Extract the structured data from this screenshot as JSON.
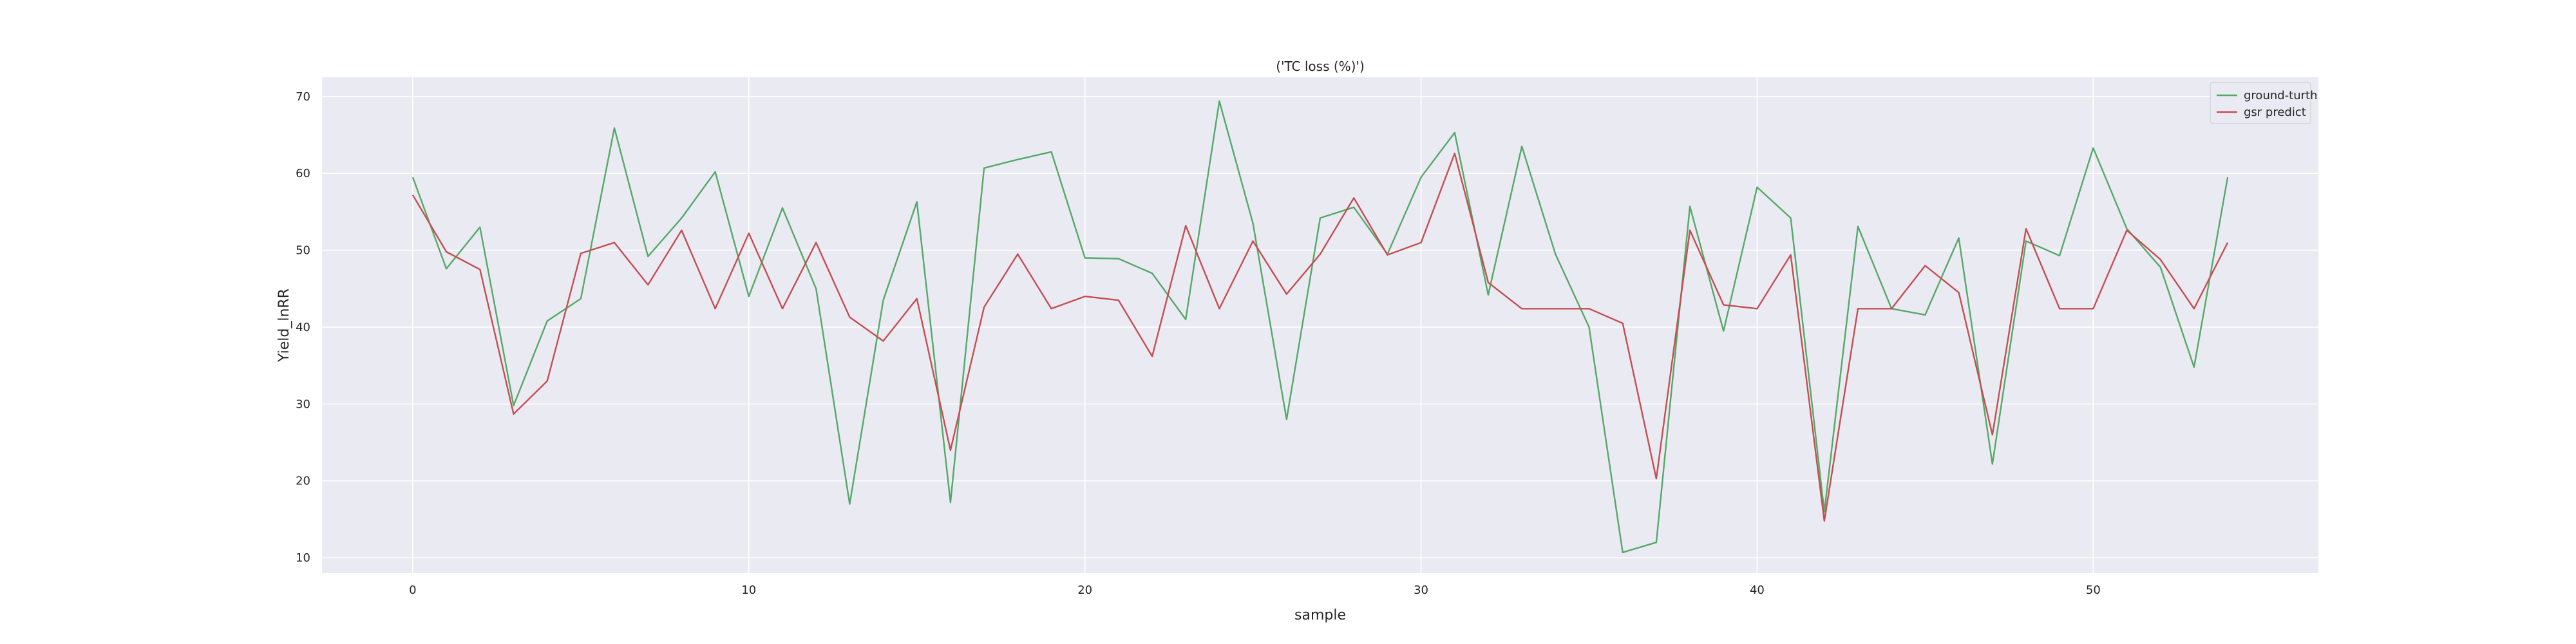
{
  "chart_data": {
    "type": "line",
    "title": "('TC loss (%)')",
    "xlabel": "sample",
    "ylabel": "Yield_lnRR",
    "xlim": [
      -2.7,
      56.7
    ],
    "ylim": [
      8,
      72.5
    ],
    "xticks": [
      0,
      10,
      20,
      30,
      40,
      50
    ],
    "yticks": [
      10,
      20,
      30,
      40,
      50,
      60,
      70
    ],
    "grid": true,
    "legend_position": "top-right",
    "colors": {
      "background": "#eaeaf2",
      "grid": "#ffffff"
    },
    "x": [
      0,
      1,
      2,
      3,
      4,
      5,
      6,
      7,
      8,
      9,
      10,
      11,
      12,
      13,
      14,
      15,
      16,
      17,
      18,
      19,
      20,
      21,
      22,
      23,
      24,
      25,
      26,
      27,
      28,
      29,
      30,
      31,
      32,
      33,
      34,
      35,
      36,
      37,
      38,
      39,
      40,
      41,
      42,
      43,
      44,
      45,
      46,
      47,
      48,
      49,
      50,
      51,
      52,
      53,
      54
    ],
    "series": [
      {
        "name": "ground-turth",
        "color": "#55a868",
        "values": [
          59.5,
          47.6,
          53.0,
          29.8,
          40.8,
          43.7,
          65.9,
          49.2,
          54.2,
          60.2,
          44.0,
          55.5,
          45.0,
          17.0,
          43.5,
          56.3,
          17.2,
          60.7,
          61.8,
          62.8,
          49.0,
          48.9,
          47.0,
          41.0,
          69.4,
          53.5,
          28.0,
          54.2,
          55.6,
          49.5,
          59.5,
          65.3,
          44.2,
          63.5,
          49.5,
          40.0,
          10.7,
          12.0,
          55.7,
          39.5,
          58.2,
          54.2,
          16.0,
          53.1,
          42.4,
          41.6,
          51.6,
          22.2,
          51.2,
          49.3,
          63.3,
          52.8,
          47.8,
          34.8,
          59.5
        ]
      },
      {
        "name": "gsr predict",
        "color": "#c44e52",
        "values": [
          57.2,
          49.8,
          47.5,
          28.7,
          33.0,
          49.6,
          51.0,
          45.5,
          52.6,
          42.4,
          52.2,
          42.4,
          51.0,
          41.3,
          38.2,
          43.7,
          24.0,
          42.6,
          49.5,
          42.4,
          44.0,
          43.5,
          36.2,
          53.2,
          42.4,
          51.2,
          44.3,
          49.5,
          56.8,
          49.4,
          51.0,
          62.6,
          45.8,
          42.4,
          42.4,
          42.4,
          40.5,
          20.3,
          52.6,
          42.9,
          42.4,
          49.4,
          14.8,
          42.4,
          42.4,
          48.0,
          44.5,
          26.0,
          52.8,
          42.4,
          42.4,
          52.6,
          48.8,
          42.4,
          51.0
        ]
      }
    ]
  }
}
